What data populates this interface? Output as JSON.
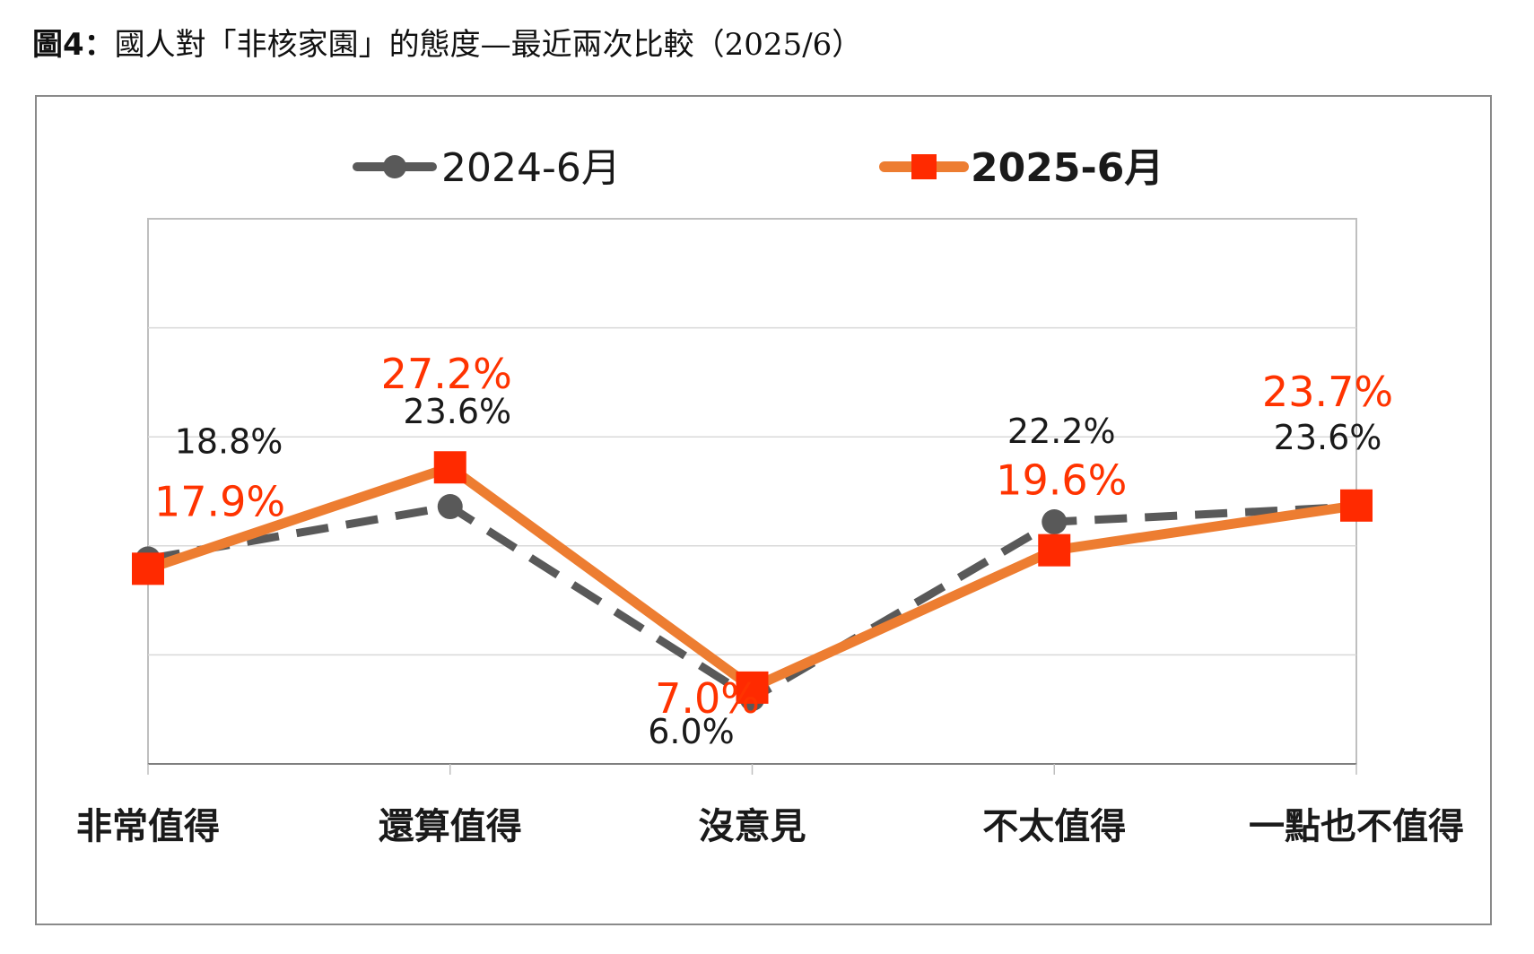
{
  "figure_title": {
    "label": "圖4：",
    "text": "國人對「非核家園」的態度—最近兩次比較（2025/6）"
  },
  "colors": {
    "series_2024": "#595959",
    "series_2025": "#ED7D31",
    "marker_2025": "#FF2A00",
    "label_2025": "#FF3300",
    "label_2024": "#1a1a1a",
    "grid": "#d9d9d9",
    "axis": "#7f7f7f"
  },
  "chart_data": {
    "type": "line",
    "categories": [
      "非常值得",
      "還算值得",
      "沒意見",
      "不太值得",
      "一點也不值得"
    ],
    "ylim": [
      0,
      50
    ],
    "grid": true,
    "legend_position": "top",
    "series": [
      {
        "name": "2024-6月",
        "values": [
          18.8,
          23.6,
          6.0,
          22.2,
          23.6
        ],
        "labels": [
          "18.8%",
          "23.6%",
          "6.0%",
          "22.2%",
          "23.6%"
        ],
        "line_style": "dashed",
        "marker": "circle"
      },
      {
        "name": "2025-6月",
        "values": [
          17.9,
          27.2,
          7.0,
          19.6,
          23.7
        ],
        "labels": [
          "17.9%",
          "27.2%",
          "7.0%",
          "19.6%",
          "23.7%"
        ],
        "line_style": "solid",
        "marker": "square"
      }
    ]
  }
}
